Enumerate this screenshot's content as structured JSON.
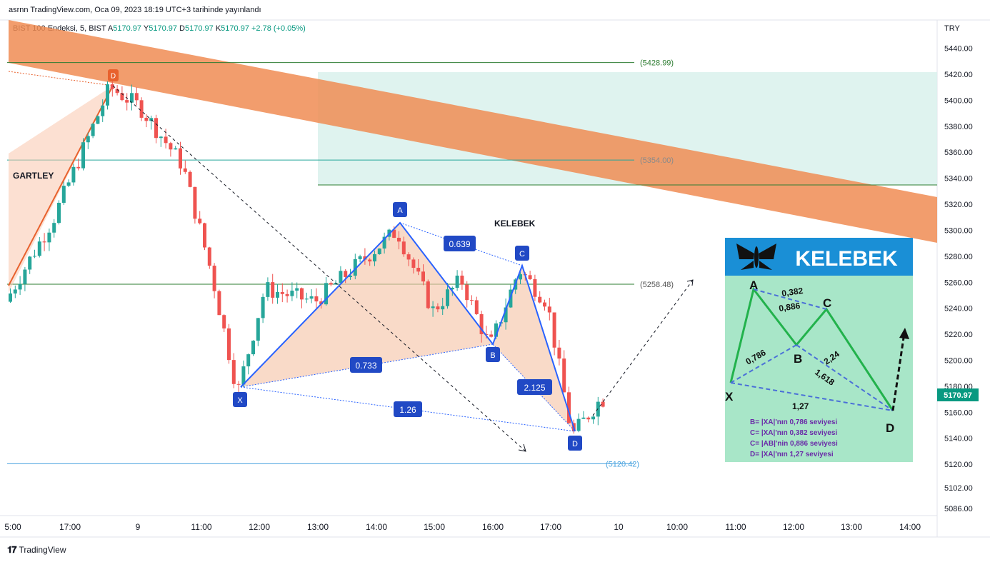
{
  "header": {
    "published": "asrnn TradingView.com, Oca 09, 2023 18:19 UTC+3 tarihinde yayınlandı",
    "symbol": "BIST 100 Endeksi, 5, BIST",
    "ohlc_a_label": "A",
    "ohlc_a": "5170.97",
    "ohlc_y_label": "Y",
    "ohlc_y": "5170.97",
    "ohlc_d_label": "D",
    "ohlc_d": "5170.97",
    "ohlc_k_label": "K",
    "ohlc_k": "5170.97",
    "change": "+2.78 (+0.05%)"
  },
  "currency": "TRY",
  "footer": {
    "brand": "TradingView"
  },
  "colors": {
    "up": "#26a69a",
    "down": "#ef5350",
    "pattern_blue": "#2962ff",
    "pattern_label": "#2149c5",
    "channel": "#f08c53",
    "zone": "#cfeee6",
    "hline": "#2e7d32",
    "accent_price": "#089981"
  },
  "chart_data": {
    "type": "candlestick",
    "y_ticks": [
      "5440.00",
      "5420.00",
      "5400.00",
      "5380.00",
      "5360.00",
      "5340.00",
      "5320.00",
      "5300.00",
      "5280.00",
      "5260.00",
      "5240.00",
      "5220.00",
      "5200.00",
      "5180.00",
      "5160.00",
      "5140.00",
      "5120.00",
      "5102.00",
      "5086.00"
    ],
    "x_ticks": [
      "5:00",
      "17:00",
      "9",
      "11:00",
      "12:00",
      "13:00",
      "14:00",
      "15:00",
      "16:00",
      "17:00",
      "10",
      "10:00",
      "11:00",
      "12:00",
      "13:00",
      "14:00"
    ],
    "last_price": "5170.97",
    "levels": [
      {
        "label": "(5428.99)",
        "value": 5428.99
      },
      {
        "label": "(5354.00)",
        "value": 5354.0
      },
      {
        "label": "(5258.48)",
        "value": 5258.48
      },
      {
        "label": "(5120.42)",
        "value": 5120.42
      }
    ],
    "annotations": {
      "gartley": "GARTLEY",
      "kelebek": "KELEBEK",
      "gartley_d": "D",
      "points": [
        "X",
        "A",
        "B",
        "C",
        "D"
      ],
      "ratios": [
        "0.639",
        "0.733",
        "2.125",
        "1.26"
      ]
    },
    "inset": {
      "title": "KELEBEK",
      "points": [
        "A",
        "B",
        "C",
        "X",
        "D"
      ],
      "ratios": [
        "0,382",
        "0,886",
        "0,786",
        "2,24",
        "1,618",
        "1,27"
      ],
      "notes": [
        "B= |XA|'nın 0,786 seviyesi",
        "C= |XA|'nın 0,382 seviyesi",
        "C= |AB|'nin 0,886 seviyesi",
        "D= |XA|'nın 1,27 seviyesi"
      ]
    }
  }
}
